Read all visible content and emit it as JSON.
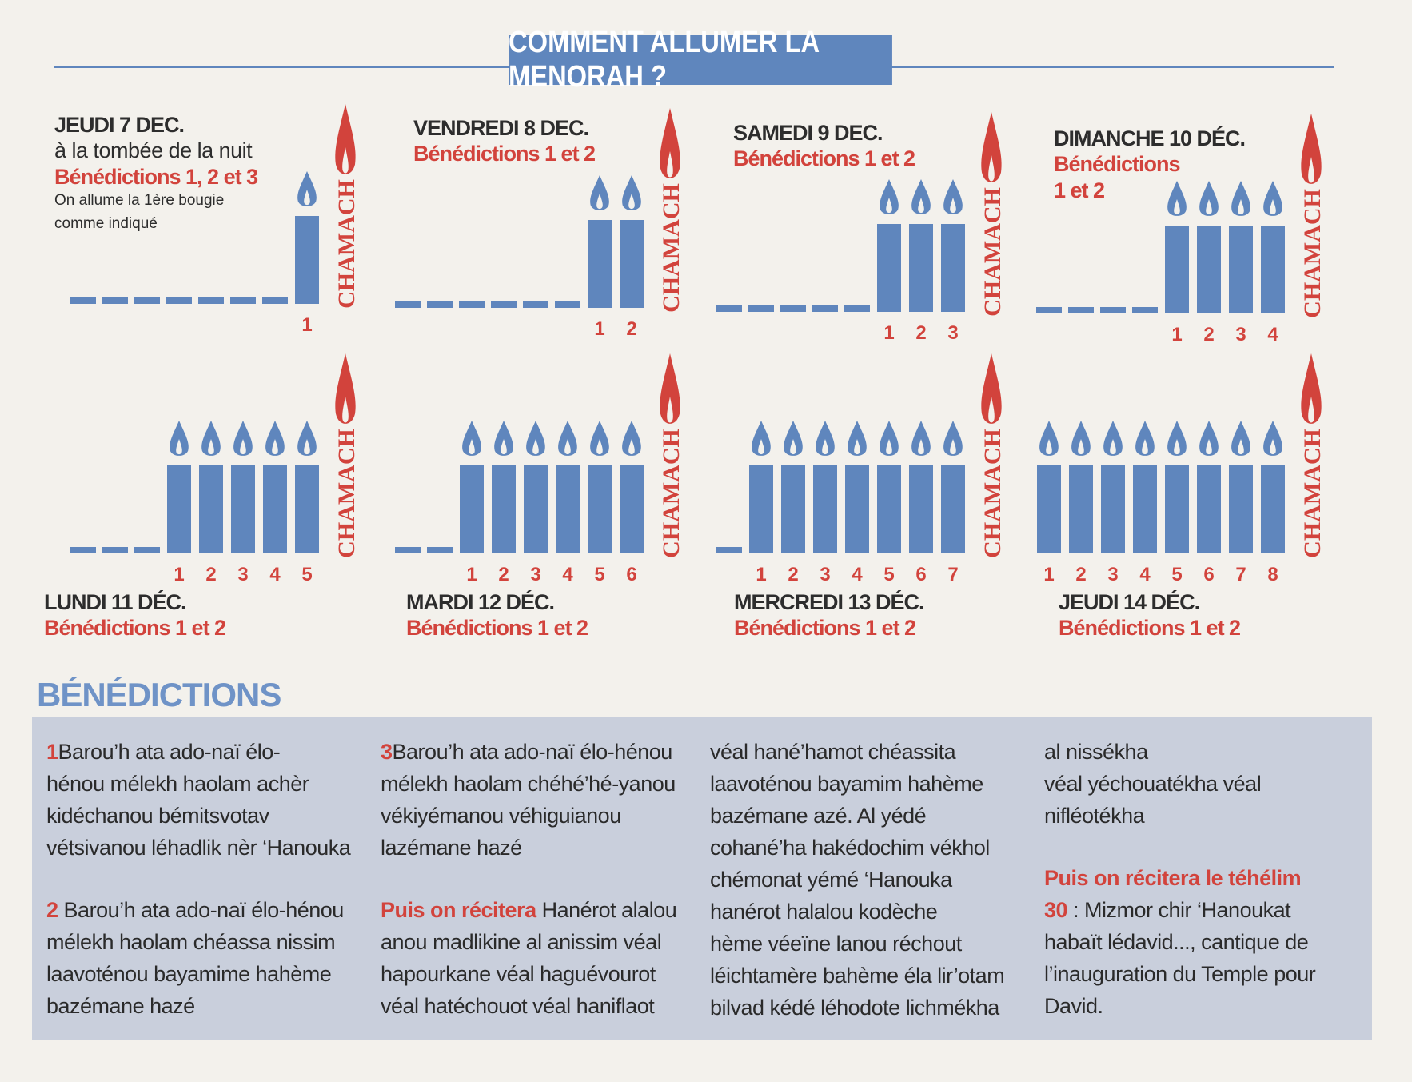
{
  "title": "COMMENT ALLUMER LA MENORAH ?",
  "shamash_label": "CHAMACH",
  "colors": {
    "blue": "#5f86bd",
    "red": "#d2433c",
    "panel": "#c9cfdc",
    "paper": "#f3f1ec"
  },
  "days": [
    {
      "date": "JEUDI 7 DEC.",
      "sub": "à la tombée de la nuit",
      "blessings": "Bénédictions 1, 2 et 3",
      "note_1": "On allume la 1ère bougie",
      "note_2": "comme indiqué",
      "lit": 1,
      "numbers": [
        "1"
      ]
    },
    {
      "date": "VENDREDI 8 DEC.",
      "blessings": "Bénédictions 1 et 2",
      "lit": 2,
      "numbers": [
        "1",
        "2"
      ]
    },
    {
      "date": "SAMEDI 9 DEC.",
      "blessings": "Bénédictions 1 et 2",
      "lit": 3,
      "numbers": [
        "1",
        "2",
        "3"
      ]
    },
    {
      "date": "DIMANCHE 10 DÉC.",
      "blessings_line1": "Bénédictions",
      "blessings_line2": "1 et 2",
      "lit": 4,
      "numbers": [
        "1",
        "2",
        "3",
        "4"
      ]
    },
    {
      "date": "LUNDI 11 DÉC.",
      "blessings": "Bénédictions 1 et 2",
      "lit": 5,
      "numbers": [
        "1",
        "2",
        "3",
        "4",
        "5"
      ]
    },
    {
      "date": "MARDI 12 DÉC.",
      "blessings": "Bénédictions 1 et 2",
      "lit": 6,
      "numbers": [
        "1",
        "2",
        "3",
        "4",
        "5",
        "6"
      ]
    },
    {
      "date": "MERCREDI 13 DÉC.",
      "blessings": "Bénédictions 1 et 2",
      "lit": 7,
      "numbers": [
        "1",
        "2",
        "3",
        "4",
        "5",
        "6",
        "7"
      ]
    },
    {
      "date": "JEUDI 14 DÉC.",
      "blessings": "Bénédictions 1 et 2",
      "lit": 8,
      "numbers": [
        "1",
        "2",
        "3",
        "4",
        "5",
        "6",
        "7",
        "8"
      ]
    }
  ],
  "benedictions": {
    "heading": "BÉNÉDICTIONS",
    "b1_num": "1",
    "b1_lines": [
      "Barou’h ata ado-naï élo-",
      "hénou mélekh haolam achèr",
      "kidéchanou bémitsvotav",
      "vétsivanou léhadlik nèr ‘Hanouka"
    ],
    "b2_num": "2",
    "b2_lines": [
      "Barou’h ata ado-naï élo-hénou",
      "mélekh haolam chéassa nissim",
      "laavoténou bayamime hahème",
      "bazémane hazé"
    ],
    "b3_num": "3",
    "b3_lines": [
      "Barou’h ata ado-naï élo-hénou",
      "mélekh haolam chéhé’hé-yanou",
      "vékiyémanou véhiguianou",
      "lazémane hazé"
    ],
    "puis_1": "Puis on récitera",
    "hanerot_lines": [
      "Hanérot alalou",
      "anou madlikine al anissim véal",
      "hapourkane véal haguévourot",
      "véal hatéchouot véal haniflaot"
    ],
    "col3_lines": [
      "véal hané’hamot chéassita",
      "laavoténou bayamim hahème",
      "bazémane azé. Al yédé",
      "cohané’ha hakédochim vékhol",
      "chémonat yémé ‘Hanouka",
      "hanérot halalou kodèche",
      "hème véeïne lanou réchout",
      "léichtamère bahème éla lir’otam",
      "bilvad kédé léhodote lichmékha"
    ],
    "col4_lines": [
      "al nissékha",
      "véal yéchouatékha véal",
      "nifléotékha"
    ],
    "puis_2_line1": "Puis on récitera le téhélim",
    "ps_num": "30",
    "ps_text": " : Mizmor chir ‘Hanoukat",
    "ps_lines": [
      "habaït lédavid..., cantique de",
      "l’inauguration du Temple pour",
      "David."
    ]
  }
}
